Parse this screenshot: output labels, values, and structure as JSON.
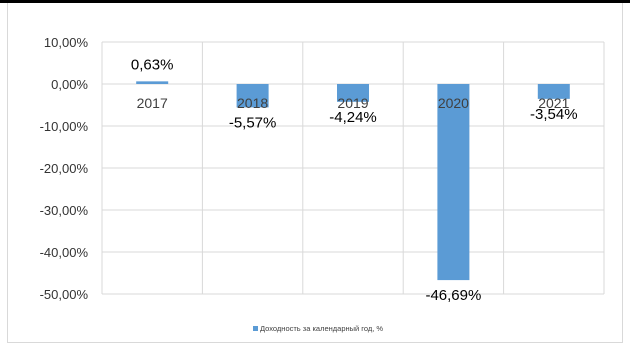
{
  "chart_data": {
    "type": "bar",
    "categories": [
      "2017",
      "2018",
      "2019",
      "2020",
      "2021"
    ],
    "series": [
      {
        "name": "Доходность за календарный год, %",
        "values": [
          0.63,
          -5.57,
          -4.24,
          -46.69,
          -3.54
        ],
        "labels": [
          "0,63%",
          "-5,57%",
          "-4,24%",
          "-46,69%",
          "-3,54%"
        ],
        "color": "#5b9bd5"
      }
    ],
    "ylim": [
      -50,
      10
    ],
    "yticks": [
      10,
      0,
      -10,
      -20,
      -30,
      -40,
      -50
    ],
    "ytick_labels": [
      "10,00%",
      "0,00%",
      "-10,00%",
      "-20,00%",
      "-30,00%",
      "-40,00%",
      "-50,00%"
    ],
    "grid": true,
    "legend_position": "bottom"
  }
}
